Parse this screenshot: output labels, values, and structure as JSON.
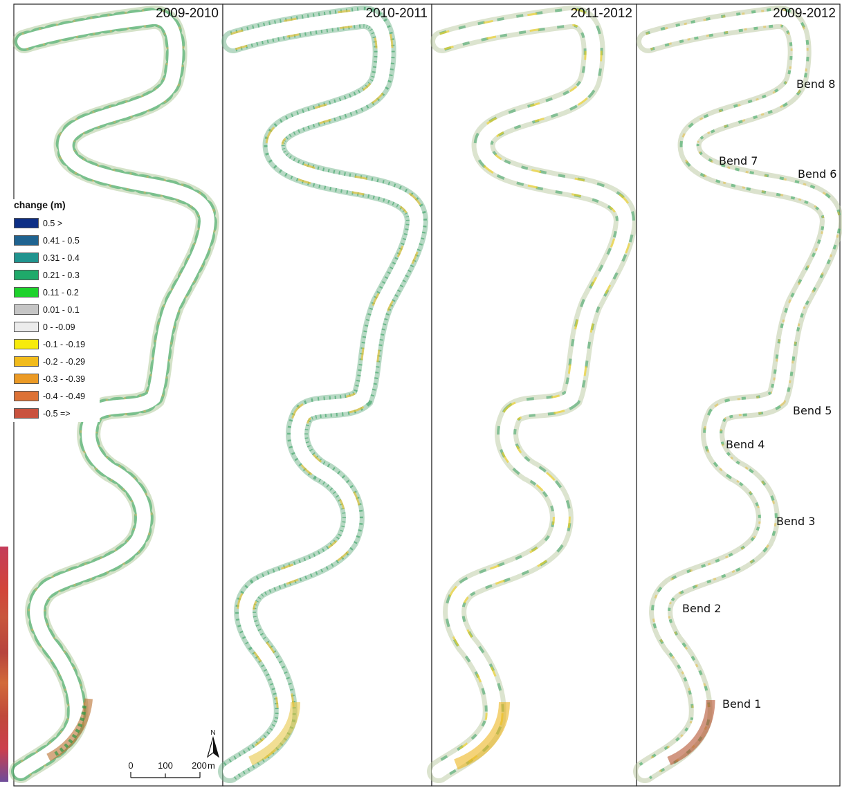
{
  "panels": [
    {
      "title": "2009-2010"
    },
    {
      "title": "2010-2011"
    },
    {
      "title": "2011-2012"
    },
    {
      "title": "2009-2012"
    }
  ],
  "legend": {
    "title": "change (m)",
    "classes": [
      {
        "label": "0.5 >",
        "color": "#0d2f86"
      },
      {
        "label": "0.41 - 0.5",
        "color": "#1f6390"
      },
      {
        "label": "0.31 - 0.4",
        "color": "#20948f"
      },
      {
        "label": "0.21 - 0.3",
        "color": "#1faa6a"
      },
      {
        "label": "0.11 - 0.2",
        "color": "#1ed22c"
      },
      {
        "label": "0.01 - 0.1",
        "color": "#c5c5c5"
      },
      {
        "label": "0 - -0.09",
        "color": "#ececec"
      },
      {
        "label": "-0.1 - -0.19",
        "color": "#f7eb0c"
      },
      {
        "label": "-0.2 - -0.29",
        "color": "#f1bb1c"
      },
      {
        "label": "-0.3 - -0.39",
        "color": "#eb9a25"
      },
      {
        "label": "-0.4 - -0.49",
        "color": "#dd7236"
      },
      {
        "label": "-0.5 =>",
        "color": "#c9523e"
      }
    ]
  },
  "bends": [
    {
      "label": "Bend 8"
    },
    {
      "label": "Bend 7"
    },
    {
      "label": "Bend 6"
    },
    {
      "label": "Bend 5"
    },
    {
      "label": "Bend 4"
    },
    {
      "label": "Bend 3"
    },
    {
      "label": "Bend 2"
    },
    {
      "label": "Bend 1"
    }
  ],
  "scale_bar": {
    "ticks": [
      "0",
      "100",
      "200"
    ],
    "unit": "m"
  },
  "north_arrow": {
    "label": "N"
  }
}
